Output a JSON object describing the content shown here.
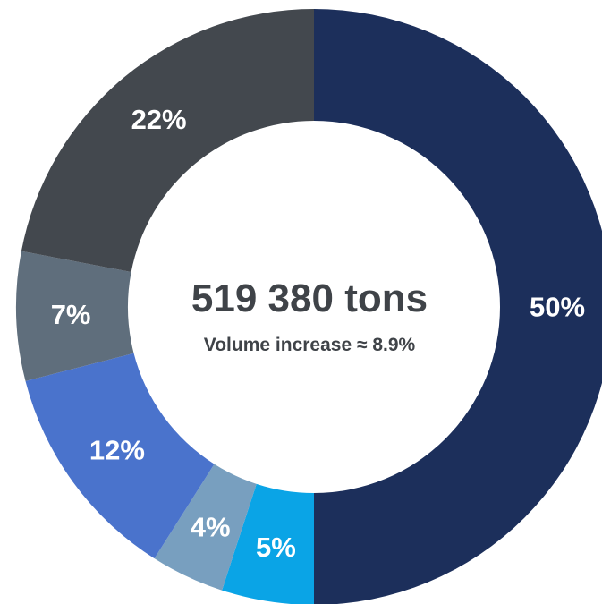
{
  "chart_data": {
    "type": "pie",
    "donut": true,
    "title": "",
    "center_text": "519 380 tons",
    "center_subtext": "Volume increase ≈ 8.9%",
    "slices": [
      {
        "value": 50,
        "label": "50%",
        "color": "#1c2f5b"
      },
      {
        "value": 5,
        "label": "5%",
        "color": "#0aa4e6"
      },
      {
        "value": 4,
        "label": "4%",
        "color": "#789fbf"
      },
      {
        "value": 12,
        "label": "12%",
        "color": "#4a73cc"
      },
      {
        "value": 7,
        "label": "7%",
        "color": "#5f6e7c"
      },
      {
        "value": 22,
        "label": "22%",
        "color": "#43484e"
      }
    ]
  }
}
